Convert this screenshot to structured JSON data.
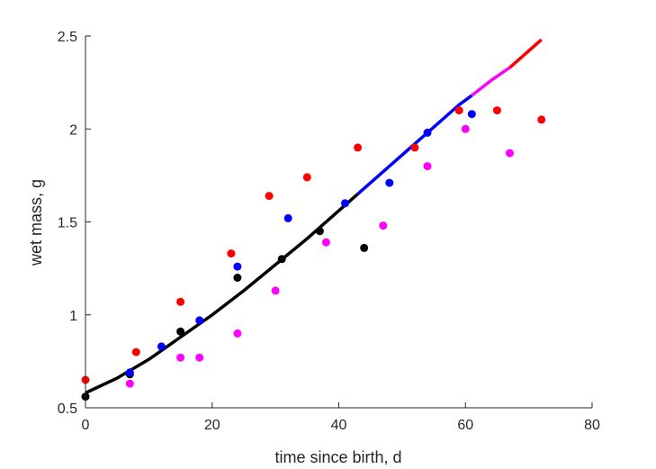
{
  "chart_data": {
    "type": "scatter",
    "xlabel": "time since birth, d",
    "ylabel": "wet mass, g",
    "xlim": [
      0,
      80
    ],
    "ylim": [
      0.5,
      2.5
    ],
    "xticks": [
      0,
      20,
      40,
      60,
      80
    ],
    "yticks": [
      0.5,
      1,
      1.5,
      2,
      2.5
    ],
    "xtick_labels": [
      "0",
      "20",
      "40",
      "60",
      "80"
    ],
    "ytick_labels": [
      "0.5",
      "1",
      "1.5",
      "2",
      "2.5"
    ],
    "grid": false,
    "legend": "none",
    "series": [
      {
        "color": "#000000",
        "points": [
          [
            0,
            0.56
          ],
          [
            7,
            0.68
          ],
          [
            15,
            0.91
          ],
          [
            24,
            1.2
          ],
          [
            31,
            1.3
          ],
          [
            37,
            1.45
          ],
          [
            44,
            1.36
          ]
        ]
      },
      {
        "color": "#0000ff",
        "points": [
          [
            7,
            0.69
          ],
          [
            12,
            0.83
          ],
          [
            18,
            0.97
          ],
          [
            24,
            1.26
          ],
          [
            32,
            1.52
          ],
          [
            41,
            1.6
          ],
          [
            48,
            1.71
          ],
          [
            54,
            1.98
          ],
          [
            61,
            2.08
          ]
        ]
      },
      {
        "color": "#ff00ff",
        "points": [
          [
            7,
            0.63
          ],
          [
            15,
            0.77
          ],
          [
            18,
            0.77
          ],
          [
            24,
            0.9
          ],
          [
            30,
            1.13
          ],
          [
            38,
            1.39
          ],
          [
            47,
            1.48
          ],
          [
            54,
            1.8
          ],
          [
            60,
            2.0
          ],
          [
            67,
            1.87
          ]
        ]
      },
      {
        "color": "#ff0000",
        "points": [
          [
            0,
            0.65
          ],
          [
            8,
            0.8
          ],
          [
            15,
            1.07
          ],
          [
            23,
            1.33
          ],
          [
            29,
            1.64
          ],
          [
            35,
            1.74
          ],
          [
            43,
            1.9
          ],
          [
            52,
            1.9
          ],
          [
            59,
            2.1
          ],
          [
            65,
            2.1
          ],
          [
            72,
            2.05
          ]
        ]
      }
    ],
    "fit_curves": [
      {
        "color": "#000000",
        "x": [
          0,
          5,
          10,
          15,
          20,
          25,
          30,
          35,
          40,
          43
        ],
        "y": [
          0.58,
          0.66,
          0.76,
          0.88,
          1.0,
          1.13,
          1.27,
          1.41,
          1.56,
          1.65
        ]
      },
      {
        "color": "#0000ff",
        "x": [
          43,
          47,
          51,
          55,
          59,
          61
        ],
        "y": [
          1.65,
          1.77,
          1.89,
          2.01,
          2.13,
          2.18
        ]
      },
      {
        "color": "#ff00ff",
        "x": [
          61,
          64,
          67
        ],
        "y": [
          2.18,
          2.26,
          2.33
        ]
      },
      {
        "color": "#ff0000",
        "x": [
          67,
          70,
          72
        ],
        "y": [
          2.33,
          2.42,
          2.48
        ]
      }
    ]
  }
}
